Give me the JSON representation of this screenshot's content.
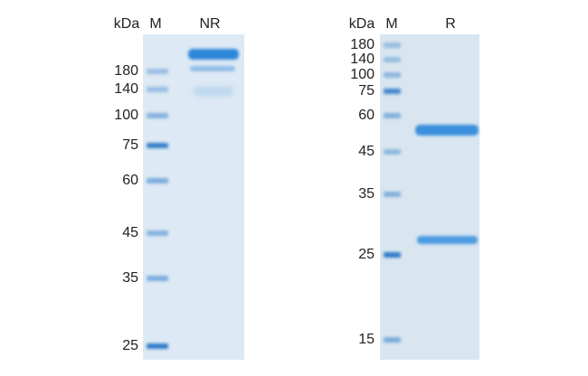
{
  "panels": [
    {
      "header": {
        "unit": "kDa",
        "marker_lane": "M",
        "sample_lane": "NR"
      },
      "markers": [
        180,
        140,
        100,
        75,
        60,
        45,
        35,
        25
      ]
    },
    {
      "header": {
        "unit": "kDa",
        "marker_lane": "M",
        "sample_lane": "R"
      },
      "markers": [
        180,
        140,
        100,
        75,
        60,
        45,
        35,
        25,
        15
      ]
    }
  ]
}
